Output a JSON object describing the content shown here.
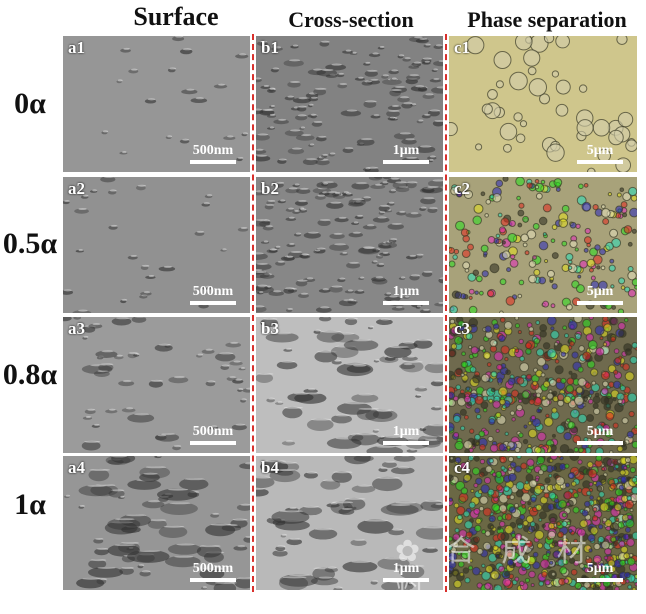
{
  "columns": [
    {
      "title": "Surface"
    },
    {
      "title": "Cross-section"
    },
    {
      "title": "Phase separation"
    }
  ],
  "rows": [
    {
      "label": "0α",
      "panels": [
        {
          "id": "a1",
          "scale": "500nm"
        },
        {
          "id": "b1",
          "scale": "1μm"
        },
        {
          "id": "c1",
          "scale": "5μm"
        }
      ]
    },
    {
      "label": "0.5α",
      "panels": [
        {
          "id": "a2",
          "scale": "500nm"
        },
        {
          "id": "b2",
          "scale": "1μm"
        },
        {
          "id": "c2",
          "scale": "5μm"
        }
      ]
    },
    {
      "label": "0.8α",
      "panels": [
        {
          "id": "a3",
          "scale": "500nm"
        },
        {
          "id": "b3",
          "scale": "1μm"
        },
        {
          "id": "c3",
          "scale": "5μm"
        }
      ]
    },
    {
      "label": "1α",
      "panels": [
        {
          "id": "a4",
          "scale": "500nm"
        },
        {
          "id": "b4",
          "scale": "1μm"
        },
        {
          "id": "c4",
          "scale": "5μm"
        }
      ]
    }
  ],
  "colors": {
    "divider": "#d9302c",
    "sem": "#8f8f8f",
    "optical": "#c9c08a"
  }
}
